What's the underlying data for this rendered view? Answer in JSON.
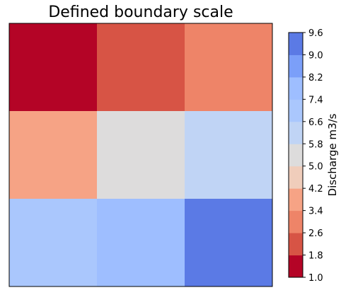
{
  "chart_data": {
    "type": "heatmap",
    "title": "Defined boundary scale",
    "xlabel": "",
    "ylabel": "",
    "rows": 3,
    "cols": 3,
    "values": [
      [
        1.4,
        2.2,
        3.0
      ],
      [
        3.8,
        5.4,
        6.2
      ],
      [
        7.0,
        7.8,
        9.4
      ]
    ],
    "x_ticks": [],
    "y_ticks": [],
    "grid": false,
    "colorbar": {
      "label": "Discharge m3/s",
      "boundaries": [
        1.0,
        1.8,
        2.6,
        3.4,
        4.2,
        5.0,
        5.8,
        6.6,
        7.4,
        8.2,
        9.0,
        9.6
      ],
      "tick_labels": [
        "1.0",
        "1.8",
        "2.6",
        "3.4",
        "4.2",
        "5.0",
        "5.8",
        "6.6",
        "7.4",
        "8.2",
        "9.0",
        "9.6"
      ],
      "colors": [
        "#b40426",
        "#d75445",
        "#ee8468",
        "#f6a385",
        "#f0cdbb",
        "#dddcdc",
        "#c0d4f5",
        "#aac7fd",
        "#9ebeff",
        "#7b9ff9",
        "#5b7ae5"
      ],
      "placement": "right"
    }
  }
}
